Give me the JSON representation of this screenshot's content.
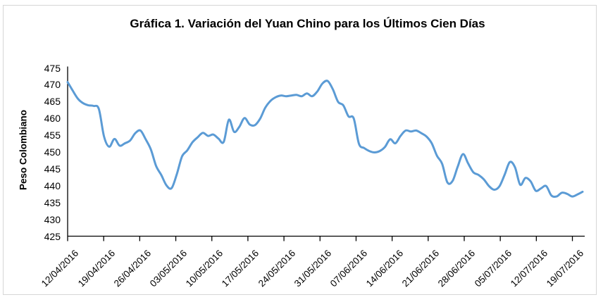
{
  "header": {
    "title": "Gráfica 1. Variación del Yuan Chino para los Últimos Cien Días"
  },
  "chart_data": {
    "type": "line",
    "title": "Gráfica 1. Variación del Yuan Chino para los Últimos Cien Días",
    "xlabel": "",
    "ylabel": "Peso Colombiano",
    "ylim": [
      425,
      475
    ],
    "ytick_step": 5,
    "ytick_labels": [
      "475",
      "470",
      "465",
      "460",
      "455",
      "450",
      "445",
      "440",
      "435",
      "430",
      "425"
    ],
    "x_tick_labels": [
      "12/04/2016",
      "19/04/2016",
      "26/04/2016",
      "03/05/2016",
      "10/05/2016",
      "17/05/2016",
      "24/05/2016",
      "31/05/2016",
      "07/06/2016",
      "14/06/2016",
      "21/06/2016",
      "28/06/2016",
      "05/07/2016",
      "12/07/2016",
      "19/07/2016"
    ],
    "x_frequency": "daily",
    "grid": false,
    "legend": "none",
    "series": [
      {
        "color": "#5B9BD5",
        "values": [
          470.8,
          468.2,
          465.8,
          464.5,
          463.9,
          463.7,
          462.8,
          454.6,
          451.6,
          453.9,
          451.9,
          452.6,
          453.4,
          455.6,
          456.4,
          453.8,
          450.8,
          445.9,
          443.2,
          440.1,
          439.3,
          443.5,
          448.7,
          450.5,
          452.9,
          454.4,
          455.7,
          454.8,
          455.2,
          454.0,
          453.0,
          459.6,
          456.0,
          457.5,
          460.1,
          458.2,
          458.0,
          459.9,
          463.2,
          465.2,
          466.3,
          466.8,
          466.6,
          466.8,
          467.0,
          466.6,
          467.4,
          466.6,
          468.0,
          470.4,
          471.1,
          468.6,
          464.9,
          463.9,
          460.6,
          460.0,
          452.5,
          451.2,
          450.3,
          449.9,
          450.3,
          451.5,
          453.8,
          452.6,
          454.8,
          456.4,
          456.1,
          456.4,
          455.6,
          454.6,
          452.6,
          448.9,
          446.5,
          441.0,
          441.4,
          445.7,
          449.4,
          446.6,
          444.0,
          443.2,
          441.9,
          439.9,
          438.8,
          439.8,
          443.2,
          447.0,
          445.5,
          440.3,
          442.3,
          441.3,
          438.5,
          439.2,
          439.9,
          437.1,
          436.8,
          437.9,
          437.6,
          436.8,
          437.4,
          438.2
        ]
      }
    ]
  }
}
